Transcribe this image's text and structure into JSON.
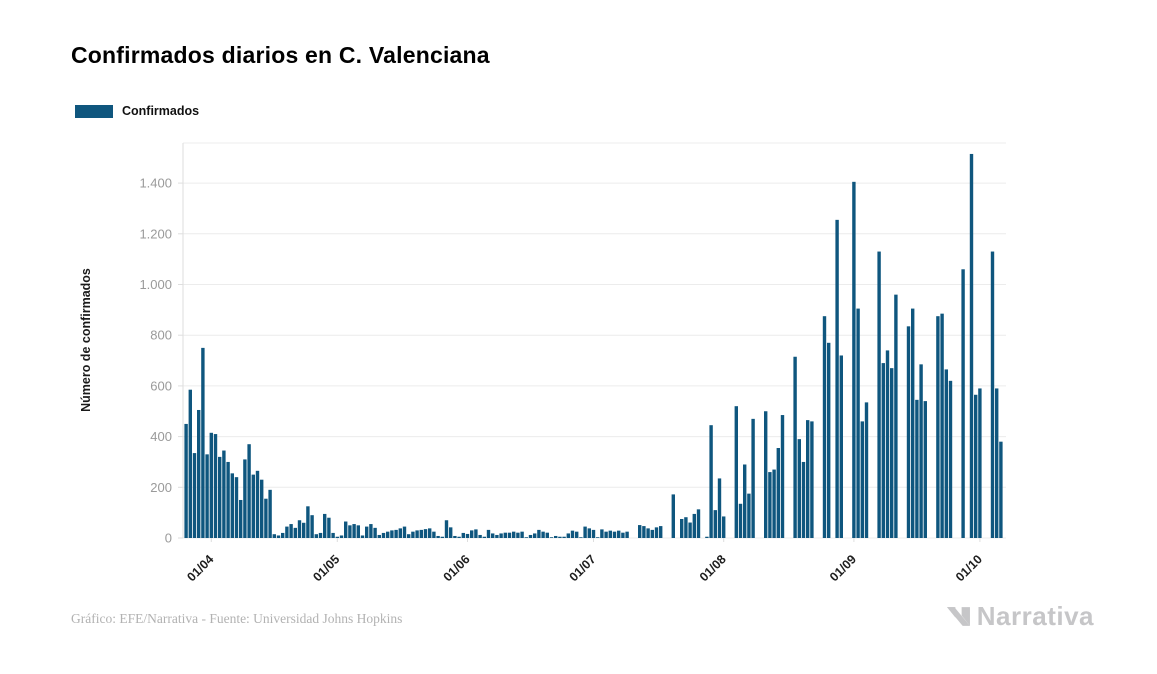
{
  "title": "Confirmados diarios en C. Valenciana",
  "legend": {
    "label": "Confirmados",
    "swatch_color": "#0F567E"
  },
  "y_axis": {
    "label": "Número de confirmados",
    "tick_labels": [
      "0",
      "200",
      "400",
      "600",
      "800",
      "1.000",
      "1.200",
      "1.400"
    ],
    "tick_values": [
      0,
      200,
      400,
      600,
      800,
      1000,
      1200,
      1400
    ],
    "range": [
      0,
      1558
    ]
  },
  "x_axis": {
    "tick_labels": [
      "01/04",
      "01/05",
      "01/06",
      "01/07",
      "01/08",
      "01/09",
      "01/10"
    ],
    "tick_indices": [
      6,
      36,
      67,
      97,
      128,
      159,
      189
    ]
  },
  "footer": {
    "credit": "Gráfico: EFE/Narrativa - Fuente: Universidad Johns Hopkins",
    "brand": "Narrativa"
  },
  "colors": {
    "bar": "#0F567E",
    "grid": "#ECECEC",
    "axis": "#DEDEDE",
    "y_tick_text": "#9A9A9A",
    "x_tick_text": "#1F1F1F",
    "footer_text": "#B2B2B2",
    "brand": "#C6C6C8"
  },
  "chart_data": {
    "type": "bar",
    "title": "Confirmados diarios en C. Valenciana",
    "ylabel": "Número de confirmados",
    "series_name": "Confirmados",
    "frequency": "daily",
    "start_date": "26/03",
    "end_date": "06/10",
    "x_tick_dates": [
      "01/04",
      "01/05",
      "01/06",
      "01/07",
      "01/08",
      "01/09",
      "01/10"
    ],
    "ylim": [
      0,
      1558
    ],
    "grid": true,
    "legend_position": "top-left",
    "values": [
      450,
      585,
      335,
      505,
      750,
      330,
      415,
      410,
      320,
      345,
      300,
      255,
      240,
      150,
      310,
      370,
      250,
      265,
      230,
      155,
      190,
      15,
      10,
      20,
      45,
      55,
      40,
      70,
      60,
      125,
      90,
      15,
      20,
      95,
      80,
      20,
      5,
      10,
      65,
      50,
      55,
      50,
      10,
      45,
      55,
      40,
      12,
      20,
      25,
      30,
      32,
      38,
      45,
      15,
      25,
      30,
      32,
      35,
      38,
      25,
      8,
      5,
      70,
      42,
      8,
      5,
      20,
      16,
      30,
      34,
      12,
      5,
      32,
      18,
      12,
      18,
      21,
      21,
      25,
      21,
      25,
      3,
      12,
      18,
      32,
      25,
      21,
      3,
      8,
      5,
      5,
      18,
      29,
      25,
      3,
      45,
      38,
      32,
      3,
      34,
      25,
      29,
      25,
      29,
      21,
      25,
      0,
      0,
      51,
      47,
      38,
      32,
      42,
      47,
      0,
      0,
      172,
      0,
      75,
      82,
      61,
      95,
      113,
      0,
      5,
      445,
      110,
      235,
      85,
      0,
      0,
      520,
      135,
      290,
      175,
      470,
      0,
      0,
      500,
      260,
      270,
      355,
      485,
      0,
      0,
      715,
      390,
      300,
      465,
      460,
      0,
      0,
      875,
      770,
      0,
      1255,
      720,
      0,
      0,
      1405,
      905,
      460,
      535,
      0,
      0,
      1130,
      690,
      740,
      670,
      960,
      0,
      0,
      835,
      905,
      545,
      685,
      540,
      0,
      0,
      875,
      885,
      665,
      620,
      0,
      0,
      1060,
      0,
      1515,
      565,
      590,
      0,
      0,
      1130,
      590,
      380
    ]
  }
}
